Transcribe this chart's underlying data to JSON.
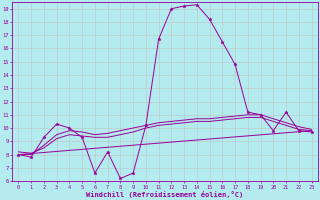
{
  "xlabel": "Windchill (Refroidissement éolien,°C)",
  "background_color": "#b3ebee",
  "grid_color": "#c0c0c0",
  "line_color": "#990099",
  "xlim": [
    -0.5,
    23.5
  ],
  "ylim": [
    6,
    19.5
  ],
  "yticks": [
    6,
    7,
    8,
    9,
    10,
    11,
    12,
    13,
    14,
    15,
    16,
    17,
    18,
    19
  ],
  "xticks": [
    0,
    1,
    2,
    3,
    4,
    5,
    6,
    7,
    8,
    9,
    10,
    11,
    12,
    13,
    14,
    15,
    16,
    17,
    18,
    19,
    20,
    21,
    22,
    23
  ],
  "series1_x": [
    0,
    1,
    2,
    3,
    4,
    5,
    6,
    7,
    8,
    9,
    10,
    11,
    12,
    13,
    14,
    15,
    16,
    17,
    18,
    19,
    20,
    21,
    22,
    23
  ],
  "series1_y": [
    8.0,
    7.8,
    9.3,
    10.3,
    10.0,
    9.3,
    6.6,
    8.2,
    6.2,
    6.6,
    10.2,
    16.7,
    19.0,
    19.2,
    19.3,
    18.2,
    16.5,
    14.8,
    11.2,
    11.0,
    9.8,
    11.2,
    9.8,
    9.7
  ],
  "series2_x": [
    0,
    1,
    2,
    3,
    4,
    5,
    6,
    7,
    8,
    9,
    10,
    11,
    12,
    13,
    14,
    15,
    16,
    17,
    18,
    19,
    20,
    21,
    22,
    23
  ],
  "series2_y": [
    8.2,
    8.1,
    8.5,
    9.2,
    9.5,
    9.4,
    9.3,
    9.3,
    9.5,
    9.7,
    10.0,
    10.2,
    10.3,
    10.4,
    10.5,
    10.5,
    10.6,
    10.7,
    10.8,
    10.8,
    10.5,
    10.2,
    9.9,
    9.8
  ],
  "series3_x": [
    0,
    1,
    2,
    3,
    4,
    5,
    6,
    7,
    8,
    9,
    10,
    11,
    12,
    13,
    14,
    15,
    16,
    17,
    18,
    19,
    20,
    21,
    22,
    23
  ],
  "series3_y": [
    8.0,
    8.0,
    8.7,
    9.5,
    9.8,
    9.7,
    9.5,
    9.6,
    9.8,
    10.0,
    10.2,
    10.4,
    10.5,
    10.6,
    10.7,
    10.7,
    10.8,
    10.9,
    11.0,
    11.0,
    10.7,
    10.4,
    10.1,
    9.9
  ],
  "series4_x": [
    0,
    23
  ],
  "series4_y": [
    8.0,
    9.8
  ]
}
